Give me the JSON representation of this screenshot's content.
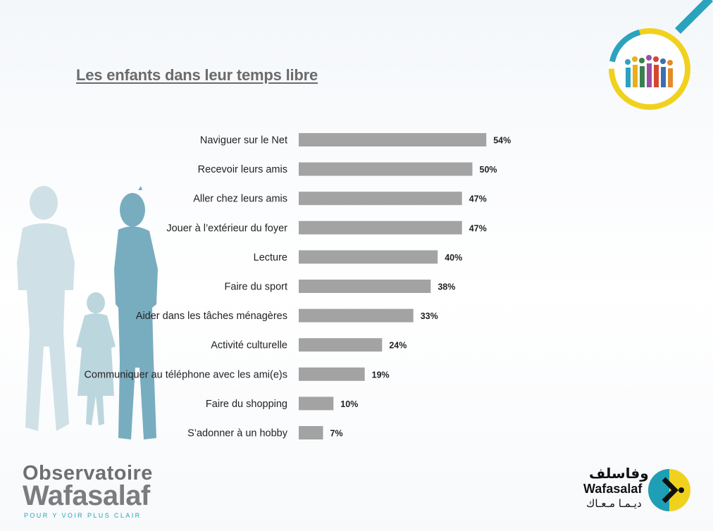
{
  "slide": {
    "title": "Les enfants dans leur temps libre"
  },
  "chart_data": {
    "type": "bar",
    "orientation": "horizontal",
    "categories": [
      "Naviguer sur le Net",
      "Recevoir leurs amis",
      "Aller chez leurs amis",
      "Jouer à l’extérieur du foyer",
      "Lecture",
      "Faire du sport",
      "Aider dans les tâches ménagères",
      "Activité culturelle",
      "Communiquer au téléphone avec les ami(e)s",
      "Faire du shopping",
      "S’adonner à un hobby"
    ],
    "values": [
      54,
      50,
      47,
      47,
      40,
      38,
      33,
      24,
      19,
      10,
      7
    ],
    "value_labels": [
      "54%",
      "50%",
      "47%",
      "47%",
      "40%",
      "38%",
      "33%",
      "24%",
      "19%",
      "10%",
      "7%"
    ],
    "title": "Les enfants dans leur temps libre",
    "xlim": [
      0,
      100
    ],
    "grid": false,
    "legend": "none",
    "bar_color": "#a3a3a3"
  },
  "branding": {
    "left_logo": {
      "line1": "Observatoire",
      "line2": "Wafasalaf",
      "tagline": "POUR Y VOIR PLUS CLAIR"
    },
    "right_logo": {
      "arabic_top": "وفاسلف",
      "name": "Wafasalaf",
      "arabic_bottom": "ديـمـا مـعـاك"
    }
  },
  "colors": {
    "title": "#6b6b6b",
    "silhouette_light": "#c9dde4",
    "silhouette_dark": "#6fa8bd",
    "accent_teal": "#2aa3bf",
    "accent_yellow": "#f0d21e"
  },
  "icons": [
    "family-silhouette-icon",
    "observatory-badge-icon",
    "wafasalaf-arrow-icon"
  ]
}
